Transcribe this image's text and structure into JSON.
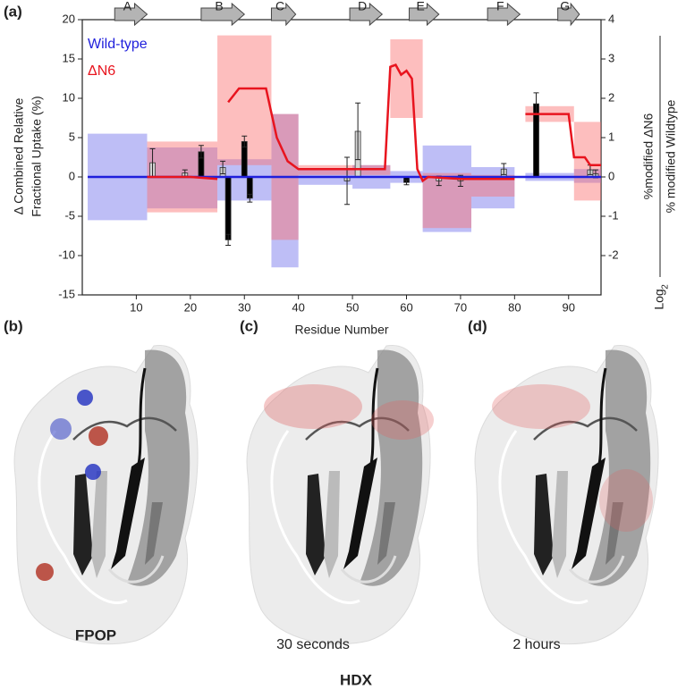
{
  "chart_data": {
    "type": "line",
    "panel_label": "(a)",
    "xlabel": "Residue Number",
    "ylabel": [
      "Δ Combined Relative",
      "Fractional Uptake (%)"
    ],
    "y2label": {
      "log": "Log",
      "base": "2",
      "numerator": "%modified ΔN6",
      "denominator": "% modified Wildtype"
    },
    "xlim": [
      0,
      96
    ],
    "xticks": [
      10,
      20,
      30,
      40,
      50,
      60,
      70,
      80,
      90
    ],
    "ylim": [
      -15,
      20
    ],
    "yticks": [
      -15,
      -10,
      -5,
      0,
      5,
      10,
      15,
      20
    ],
    "y2lim": [
      -3,
      4
    ],
    "y2ticks": [
      -2,
      -1,
      0,
      1,
      2,
      3,
      4
    ],
    "strands": {
      "labels": [
        "A",
        "B",
        "C",
        "D",
        "E",
        "F",
        "G"
      ],
      "start": [
        6,
        22,
        35,
        49.5,
        60.5,
        75,
        88
      ],
      "end": [
        12,
        30,
        39.5,
        55.5,
        66,
        81,
        92
      ],
      "color": "#b4b4b4"
    },
    "series": [
      {
        "name": "Wild-type",
        "color": "#1f1fdc",
        "band_color": "rgba(110,110,235,0.45)",
        "axis": "y2",
        "x": [
          1,
          96
        ],
        "values": [
          0,
          0
        ],
        "band": {
          "start": [
            1,
            12,
            25,
            35,
            40,
            50,
            57,
            63,
            72,
            82,
            91
          ],
          "end": [
            12,
            25,
            35,
            40,
            50,
            57,
            63,
            72,
            80,
            91,
            96
          ],
          "upper": [
            1.1,
            0.75,
            0.45,
            1.6,
            0.2,
            0.3,
            0.15,
            0.8,
            0.25,
            0.1,
            0.2
          ],
          "lower": [
            -1.1,
            -0.8,
            -0.6,
            -2.3,
            -0.2,
            -0.3,
            -0.15,
            -1.4,
            -0.8,
            -0.1,
            -0.15
          ]
        }
      },
      {
        "name": "ΔN6",
        "color": "#e8141e",
        "band_color": "rgba(250,110,110,0.45)",
        "axis": "y2",
        "x": [
          12,
          20,
          22,
          25,
          26,
          27,
          29,
          34,
          36,
          38,
          40,
          45,
          56,
          57,
          58,
          59,
          60,
          61,
          62,
          63,
          64,
          70,
          80,
          81,
          82,
          90,
          91,
          93,
          94,
          96
        ],
        "values": [
          0,
          0,
          -0.02,
          -0.05,
          null,
          1.9,
          2.25,
          2.25,
          1.0,
          0.4,
          0.2,
          0.2,
          0.2,
          2.8,
          2.85,
          2.6,
          2.7,
          2.5,
          0.2,
          -0.1,
          0,
          -0.05,
          -0.05,
          null,
          1.6,
          1.6,
          0.5,
          0.5,
          0.3,
          0.3
        ],
        "band": {
          "start": [
            12,
            25,
            35,
            40,
            57,
            63,
            72,
            82,
            91
          ],
          "end": [
            25,
            35,
            40,
            57,
            63,
            72,
            80,
            91,
            96
          ],
          "upper": [
            0.9,
            3.6,
            1.6,
            0.3,
            3.5,
            0.1,
            0.05,
            1.8,
            1.4
          ],
          "lower": [
            -0.9,
            0.3,
            -1.6,
            0.05,
            1.5,
            -1.3,
            -0.5,
            1.4,
            -0.6
          ]
        }
      }
    ],
    "bar_series": [
      {
        "color": "#000000",
        "x": [
          22,
          27,
          30,
          31,
          60,
          84
        ],
        "values": [
          3.2,
          -8,
          4.5,
          -2.7,
          -0.7,
          9.3
        ],
        "errors": [
          0.8,
          0.7,
          0.7,
          0.5,
          0.3,
          1.4
        ]
      },
      {
        "color": "#d4d4d4",
        "x": [
          13,
          19,
          26,
          49,
          51,
          66,
          70,
          78,
          94,
          95
        ],
        "values": [
          1.8,
          0.5,
          1.2,
          -0.5,
          5.8,
          -0.5,
          -0.5,
          1.0,
          0.9,
          0.4
        ],
        "errors": [
          1.8,
          0.4,
          0.8,
          3,
          3.6,
          0.6,
          0.7,
          0.7,
          0.6,
          0.5
        ]
      }
    ]
  },
  "panels": [
    {
      "label": "(b)",
      "caption": "FPOP"
    },
    {
      "label": "(c)",
      "caption": "30 seconds"
    },
    {
      "label": "(d)",
      "caption": "2 hours"
    }
  ],
  "panel_group_label": "HDX"
}
